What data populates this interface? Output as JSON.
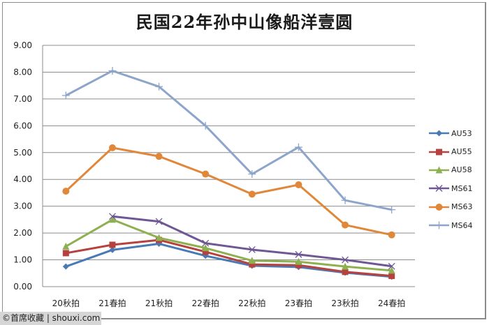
{
  "chart_data": {
    "type": "line",
    "title": "民国22年孙中山像船洋壹圆",
    "xlabel": "",
    "ylabel": "",
    "ylim": [
      0,
      9
    ],
    "yticks": [
      "0.00",
      "1.00",
      "2.00",
      "3.00",
      "4.00",
      "5.00",
      "6.00",
      "7.00",
      "8.00",
      "9.00"
    ],
    "grid": true,
    "legend_position": "right",
    "categories": [
      "20秋拍",
      "21春拍",
      "21秋拍",
      "22春拍",
      "22秋拍",
      "23春拍",
      "23秋拍",
      "24春拍"
    ],
    "series": [
      {
        "name": "AU53",
        "color": "#4a7ab5",
        "marker": "diamond",
        "values": [
          0.75,
          1.37,
          1.6,
          1.15,
          0.78,
          0.73,
          0.52,
          0.37
        ]
      },
      {
        "name": "AU55",
        "color": "#b5423f",
        "marker": "square",
        "values": [
          1.25,
          1.56,
          1.74,
          1.3,
          0.83,
          0.8,
          0.55,
          0.4
        ]
      },
      {
        "name": "AU58",
        "color": "#8fb050",
        "marker": "triangle",
        "values": [
          1.5,
          2.5,
          1.82,
          1.44,
          0.97,
          0.93,
          0.75,
          0.6
        ]
      },
      {
        "name": "MS61",
        "color": "#6f5795",
        "marker": "x",
        "values": [
          null,
          2.62,
          2.43,
          1.62,
          1.38,
          1.2,
          1.0,
          0.76
        ]
      },
      {
        "name": "MS63",
        "color": "#e0873a",
        "marker": "circle",
        "values": [
          3.56,
          5.18,
          4.86,
          4.2,
          3.45,
          3.8,
          2.3,
          1.93
        ]
      },
      {
        "name": "MS64",
        "color": "#8ea5cb",
        "marker": "plus",
        "values": [
          7.13,
          8.05,
          7.46,
          6.0,
          4.2,
          5.2,
          3.22,
          2.87
        ]
      }
    ]
  },
  "watermark": "©首席收藏 | shouxi.com"
}
